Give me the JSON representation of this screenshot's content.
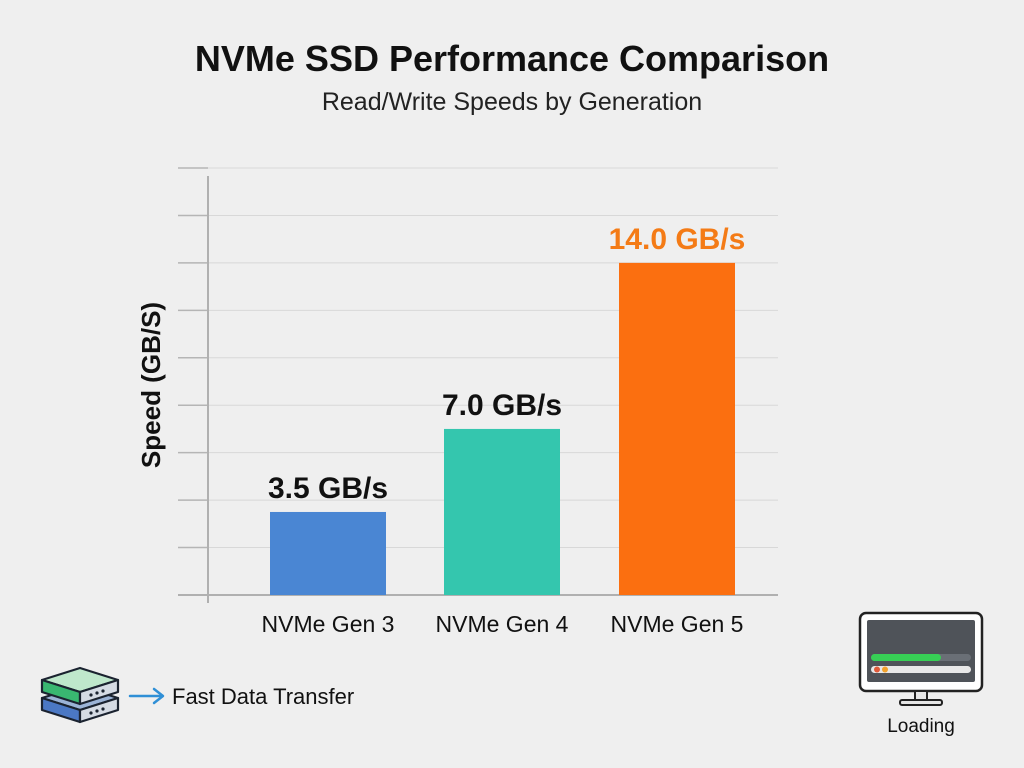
{
  "chart_data": {
    "type": "bar",
    "title": "NVMe SSD Performance Comparison",
    "subtitle": "Read/Write Speeds by Generation",
    "categories": [
      "NVMe Gen 3",
      "NVMe Gen 4",
      "NVMe Gen 5"
    ],
    "values": [
      3.5,
      7.0,
      14.0
    ],
    "data_labels": [
      "3.5 GB/s",
      "7.0 GB/s",
      "14.0 GB/s"
    ],
    "colors": [
      "#4a86d3",
      "#34c6ae",
      "#fb6f10"
    ],
    "label_colors": [
      "#111111",
      "#111111",
      "#f47b16"
    ],
    "xlabel": "",
    "ylabel": "Speed (GB/S)",
    "ylim": [
      0,
      18
    ],
    "grid": true
  },
  "footer": {
    "label": "Fast Data Transfer",
    "icon": "server-stack-icon",
    "arrow_icon": "arrow-right-icon",
    "arrow_color": "#2f8fd6"
  },
  "status": {
    "label": "Loading",
    "icon": "monitor-loading-icon",
    "progress": 0.7,
    "progress_color": "#37cf55"
  }
}
